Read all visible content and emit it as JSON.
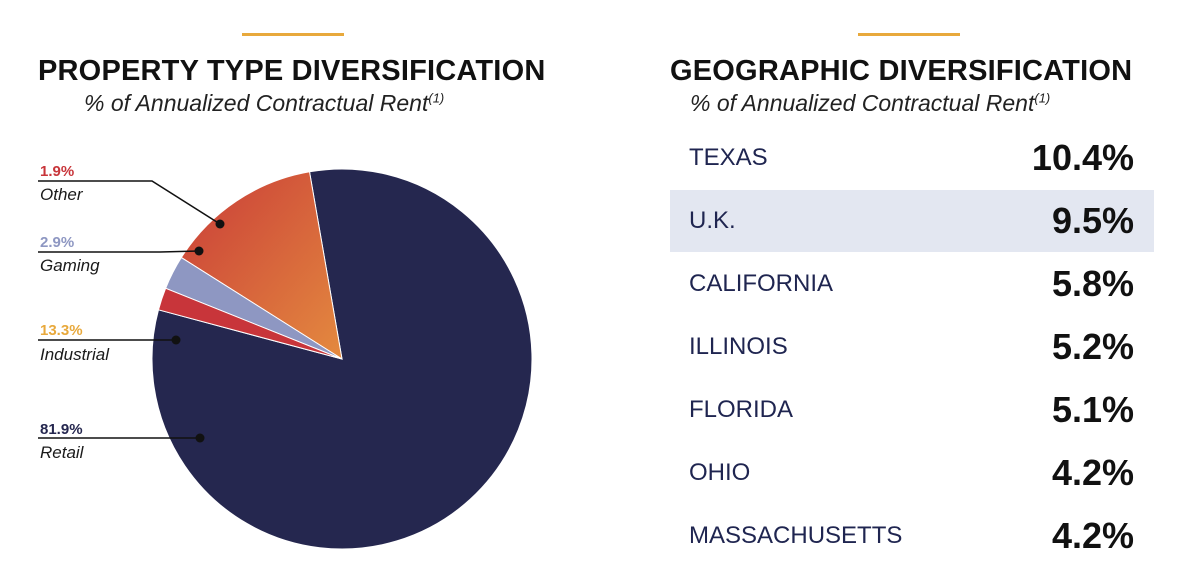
{
  "colors": {
    "accent": "#e8a93c",
    "retail": "#25274f",
    "industrial_start": "#c93c38",
    "industrial_end": "#e07a3e",
    "gaming": "#8e97c2",
    "other": "#c8353a",
    "industrial_label": "#e8a93c",
    "row_shade": "#e3e7f1"
  },
  "left": {
    "title": "PROPERTY TYPE DIVERSIFICATION",
    "subtitle": "% of Annualized Contractual Rent",
    "subtitle_note": "(1)"
  },
  "right": {
    "title": "GEOGRAPHIC DIVERSIFICATION",
    "subtitle": "% of Annualized Contractual Rent",
    "subtitle_note": "(1)"
  },
  "chart_data": [
    {
      "type": "pie",
      "title": "PROPERTY TYPE DIVERSIFICATION",
      "subtitle": "% of Annualized Contractual Rent(1)",
      "slices": [
        {
          "label": "Retail",
          "value": 81.9,
          "display": "81.9%",
          "color": "#25274f"
        },
        {
          "label": "Industrial",
          "value": 13.3,
          "display": "13.3%",
          "color": "#d35a3b"
        },
        {
          "label": "Gaming",
          "value": 2.9,
          "display": "2.9%",
          "color": "#8e97c2"
        },
        {
          "label": "Other",
          "value": 1.9,
          "display": "1.9%",
          "color": "#c8353a"
        }
      ]
    },
    {
      "type": "table",
      "title": "GEOGRAPHIC DIVERSIFICATION",
      "subtitle": "% of Annualized Contractual Rent(1)",
      "rows": [
        {
          "label": "TEXAS",
          "value": 10.4,
          "display": "10.4%"
        },
        {
          "label": "U.K.",
          "value": 9.5,
          "display": "9.5%"
        },
        {
          "label": "CALIFORNIA",
          "value": 5.8,
          "display": "5.8%"
        },
        {
          "label": "ILLINOIS",
          "value": 5.2,
          "display": "5.2%"
        },
        {
          "label": "FLORIDA",
          "value": 5.1,
          "display": "5.1%"
        },
        {
          "label": "OHIO",
          "value": 4.2,
          "display": "4.2%"
        },
        {
          "label": "MASSACHUSETTS",
          "value": 4.2,
          "display": "4.2%"
        }
      ]
    }
  ]
}
